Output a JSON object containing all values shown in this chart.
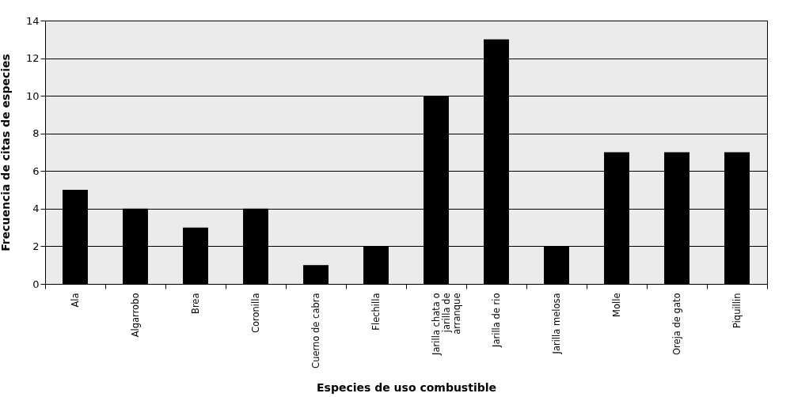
{
  "chart_data": {
    "type": "bar",
    "xlabel": "Especies de uso combustible",
    "ylabel": "Frecuencia de citas de especies",
    "categories": [
      "Ala",
      "Algarrobo",
      "Brea",
      "Coronilla",
      "Cuerno de cabra",
      "Flechilla",
      "Jarilla chata o jarilla de arranque",
      "Jarilla de rio",
      "Jarilla melosa",
      "Molle",
      "Oreja de gato",
      "Piquillin"
    ],
    "values": [
      5,
      4,
      3,
      4,
      1,
      2,
      10,
      13,
      2,
      7,
      7,
      7
    ],
    "color": "#000000",
    "ylim": [
      0,
      14
    ],
    "yticks": [
      0,
      2,
      4,
      6,
      8,
      10,
      12,
      14
    ],
    "grid": "y"
  }
}
